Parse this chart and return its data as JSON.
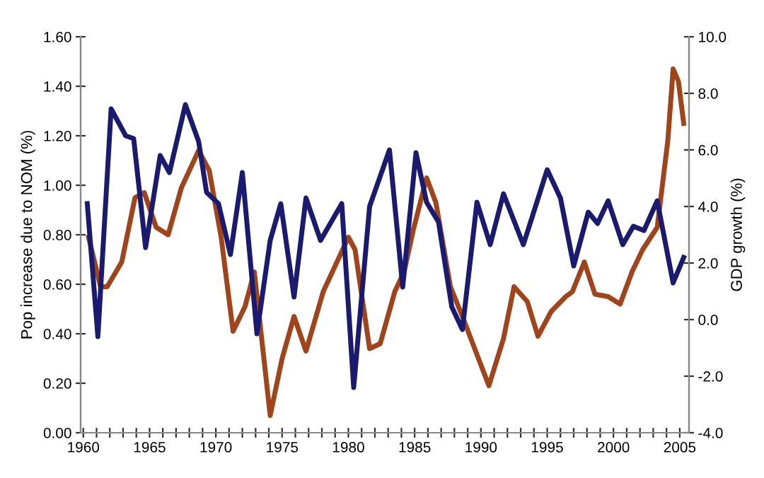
{
  "chart_data": {
    "type": "line",
    "ylabel": "Pop increase due to NOM (%)",
    "y2label": "GDP growth (%)",
    "xlim": [
      1959.8,
      2005.7
    ],
    "xticks": [
      1960,
      {
        "value": 1961,
        "label": null
      },
      {
        "value": 1962,
        "label": null
      },
      {
        "value": 1963,
        "label": null
      },
      {
        "value": 1964,
        "label": null
      },
      1965,
      {
        "value": 1966,
        "label": null
      },
      {
        "value": 1967,
        "label": null
      },
      {
        "value": 1968,
        "label": null
      },
      {
        "value": 1969,
        "label": null
      },
      1970,
      {
        "value": 1971,
        "label": null
      },
      {
        "value": 1972,
        "label": null
      },
      {
        "value": 1973,
        "label": null
      },
      {
        "value": 1974,
        "label": null
      },
      1975,
      {
        "value": 1976,
        "label": null
      },
      {
        "value": 1977,
        "label": null
      },
      {
        "value": 1978,
        "label": null
      },
      {
        "value": 1979,
        "label": null
      },
      1980,
      {
        "value": 1981,
        "label": null
      },
      {
        "value": 1982,
        "label": null
      },
      {
        "value": 1983,
        "label": null
      },
      {
        "value": 1984,
        "label": null
      },
      1985,
      {
        "value": 1986,
        "label": null
      },
      {
        "value": 1987,
        "label": null
      },
      {
        "value": 1988,
        "label": null
      },
      {
        "value": 1989,
        "label": null
      },
      1990,
      {
        "value": 1991,
        "label": null
      },
      {
        "value": 1992,
        "label": null
      },
      {
        "value": 1993,
        "label": null
      },
      {
        "value": 1994,
        "label": null
      },
      1995,
      {
        "value": 1996,
        "label": null
      },
      {
        "value": 1997,
        "label": null
      },
      {
        "value": 1998,
        "label": null
      },
      {
        "value": 1999,
        "label": null
      },
      2000,
      {
        "value": 2001,
        "label": null
      },
      {
        "value": 2002,
        "label": null
      },
      {
        "value": 2003,
        "label": null
      },
      {
        "value": 2004,
        "label": null
      },
      2005
    ],
    "ylim": [
      0,
      1.6
    ],
    "yticks": [
      {
        "value": 0,
        "label": "0.00"
      },
      {
        "value": 0.2,
        "label": "0.20"
      },
      {
        "value": 0.4,
        "label": "0.40"
      },
      {
        "value": 0.6,
        "label": "0.60"
      },
      {
        "value": 0.8,
        "label": "0.80"
      },
      {
        "value": 1.0,
        "label": "1.00"
      },
      {
        "value": 1.2,
        "label": "1.20"
      },
      {
        "value": 1.4,
        "label": "1.40"
      },
      {
        "value": 1.6,
        "label": "1.60"
      }
    ],
    "y2lim": [
      -4,
      10
    ],
    "y2ticks": [
      {
        "value": -4,
        "label": "-4.0"
      },
      {
        "value": -2,
        "label": "-2.0"
      },
      {
        "value": 0,
        "label": "0.0"
      },
      {
        "value": 2,
        "label": "2.0"
      },
      {
        "value": 4,
        "label": "4.0"
      },
      {
        "value": 6,
        "label": "6.0"
      },
      {
        "value": 8,
        "label": "8.0"
      },
      {
        "value": 10,
        "label": "10.0"
      }
    ],
    "marker": "none",
    "line_style": "solid",
    "grid": false,
    "legend": false,
    "series": [
      {
        "color": "#a0441c",
        "x": [
          1960.4,
          1961.3,
          1961.8,
          1962.9,
          1963.9,
          1964.6,
          1965.5,
          1966.4,
          1967.4,
          1968.7,
          1969.5,
          1970.4,
          1971.3,
          1972.2,
          1972.9,
          1974.1,
          1975.0,
          1975.9,
          1976.8,
          1978.1,
          1980.0,
          1980.5,
          1981.6,
          1982.4,
          1983.5,
          1984.2,
          1984.9,
          1985.9,
          1986.6,
          1987.7,
          1988.6,
          1990.6,
          1991.7,
          1992.5,
          1993.5,
          1994.3,
          1995.3,
          1996.4,
          1996.9,
          1997.8,
          1998.6,
          1999.6,
          2000.5,
          2001.4,
          2002.2,
          2003.3,
          2004.1,
          2004.5,
          2004.9,
          2005.3
        ],
        "values": [
          0.79,
          0.59,
          0.59,
          0.69,
          0.95,
          0.97,
          0.83,
          0.8,
          0.99,
          1.14,
          1.06,
          0.79,
          0.41,
          0.51,
          0.65,
          0.07,
          0.3,
          0.47,
          0.33,
          0.57,
          0.79,
          0.74,
          0.34,
          0.36,
          0.57,
          0.65,
          0.82,
          1.03,
          0.93,
          0.59,
          0.47,
          0.19,
          0.38,
          0.59,
          0.53,
          0.39,
          0.49,
          0.55,
          0.57,
          0.69,
          0.56,
          0.55,
          0.52,
          0.65,
          0.74,
          0.83,
          1.18,
          1.47,
          1.42,
          1.25
        ]
      },
      {
        "color": "#1a1a6e",
        "axis": "y2",
        "x": [
          1960.3,
          1961.1,
          1962.1,
          1963.2,
          1963.8,
          1964.7,
          1965.8,
          1966.5,
          1967.7,
          1968.7,
          1969.3,
          1970.2,
          1971.1,
          1972.0,
          1973.1,
          1974.1,
          1974.9,
          1975.9,
          1976.8,
          1977.9,
          1979.5,
          1980.4,
          1981.6,
          1983.1,
          1984.1,
          1985.1,
          1985.9,
          1986.8,
          1987.8,
          1988.6,
          1989.7,
          1990.7,
          1991.7,
          1993.2,
          1995.0,
          1996.0,
          1997.0,
          1998.1,
          1998.8,
          1999.6,
          2000.7,
          2001.5,
          2002.3,
          2003.3,
          2004.5,
          2005.3
        ],
        "values": [
          4.1,
          -0.6,
          7.45,
          6.5,
          6.4,
          2.55,
          5.8,
          5.2,
          7.6,
          6.3,
          4.5,
          4.1,
          2.3,
          5.2,
          -0.5,
          2.8,
          4.1,
          0.8,
          4.3,
          2.8,
          4.1,
          -2.4,
          4.0,
          6.0,
          1.15,
          5.9,
          4.15,
          3.45,
          0.45,
          -0.35,
          4.15,
          2.65,
          4.45,
          2.65,
          5.3,
          4.3,
          1.9,
          3.8,
          3.4,
          4.2,
          2.65,
          3.3,
          3.15,
          4.2,
          1.3,
          2.2
        ]
      }
    ]
  }
}
